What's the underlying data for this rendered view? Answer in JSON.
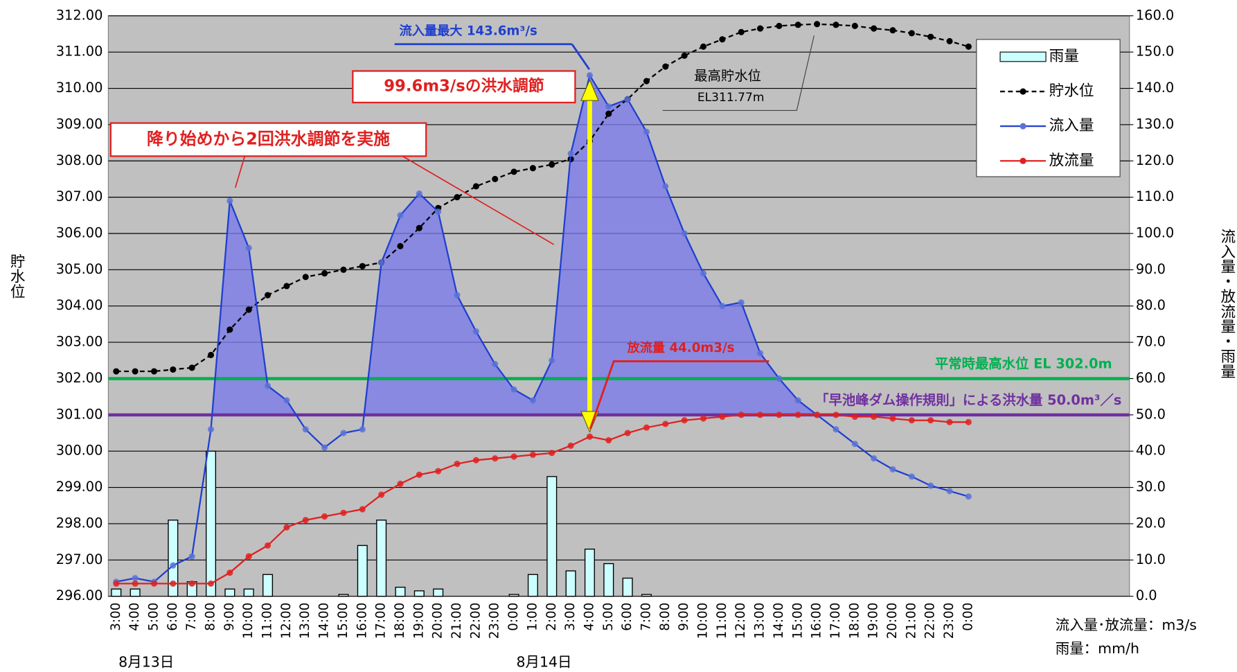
{
  "chart_data": {
    "type": "line",
    "categories": [
      "3:00",
      "4:00",
      "5:00",
      "6:00",
      "7:00",
      "8:00",
      "9:00",
      "10:00",
      "11:00",
      "12:00",
      "13:00",
      "14:00",
      "15:00",
      "16:00",
      "17:00",
      "18:00",
      "19:00",
      "20:00",
      "21:00",
      "22:00",
      "23:00",
      "0:00",
      "1:00",
      "2:00",
      "3:00",
      "4:00",
      "5:00",
      "6:00",
      "7:00",
      "8:00",
      "9:00",
      "10:00",
      "11:00",
      "12:00",
      "13:00",
      "14:00",
      "15:00",
      "16:00",
      "17:00",
      "18:00",
      "19:00",
      "20:00",
      "21:00",
      "22:00",
      "23:00",
      "0:00"
    ],
    "dates": [
      {
        "index": 0,
        "label": "8月13日"
      },
      {
        "index": 21,
        "label": "8月14日"
      }
    ],
    "series": [
      {
        "name": "雨量",
        "type": "bar",
        "axis": "y2",
        "color": "#ccffff",
        "values": [
          2,
          2,
          0,
          21,
          4,
          40,
          2,
          2,
          6,
          0,
          0,
          0,
          0.5,
          14,
          21,
          2.5,
          1.5,
          2,
          0,
          0,
          0,
          0.5,
          6,
          33,
          7,
          13,
          9,
          5,
          0.5,
          0,
          0,
          0,
          0,
          0,
          0,
          0,
          0,
          0,
          0,
          0,
          0,
          0,
          0,
          0,
          0,
          0
        ]
      },
      {
        "name": "貯水位",
        "type": "line",
        "axis": "y",
        "color": "#000000",
        "dashed": true,
        "values": [
          302.2,
          302.2,
          302.2,
          302.25,
          302.3,
          302.65,
          303.35,
          303.9,
          304.3,
          304.55,
          304.8,
          304.9,
          305.0,
          305.1,
          305.2,
          305.65,
          306.15,
          306.7,
          307.0,
          307.3,
          307.5,
          307.7,
          307.8,
          307.9,
          308.05,
          308.55,
          309.3,
          309.7,
          310.2,
          310.6,
          310.9,
          311.15,
          311.35,
          311.55,
          311.65,
          311.72,
          311.75,
          311.77,
          311.75,
          311.72,
          311.65,
          311.6,
          311.52,
          311.42,
          311.3,
          311.15
        ]
      },
      {
        "name": "流入量",
        "type": "line",
        "axis": "y2",
        "color": "#1f3fd0",
        "values": [
          4,
          5,
          4,
          8.5,
          11,
          46,
          109,
          96,
          58,
          54,
          46,
          41,
          45,
          46,
          92,
          105,
          111,
          106,
          83,
          73,
          64,
          57,
          54,
          65,
          122,
          143.6,
          135,
          137,
          128,
          113,
          100,
          89,
          80,
          81,
          67,
          60,
          54,
          50,
          46,
          42,
          38,
          35,
          33,
          30.5,
          29,
          27.5
        ]
      },
      {
        "name": "放流量",
        "type": "line",
        "axis": "y2",
        "color": "#e02020",
        "values": [
          3.5,
          3.5,
          3.5,
          3.5,
          3.5,
          3.5,
          6.5,
          11,
          14,
          19,
          21,
          22,
          23,
          24,
          28,
          31,
          33.5,
          34.5,
          36.5,
          37.5,
          38,
          38.5,
          39,
          39.5,
          41.5,
          44.0,
          43,
          45,
          46.5,
          47.5,
          48.5,
          49,
          49.5,
          50,
          50,
          50,
          50,
          50,
          50,
          49.5,
          49.5,
          49,
          48.5,
          48.5,
          48,
          48
        ]
      }
    ],
    "ylim": [
      296,
      312
    ],
    "yticks": [
      {
        "value": 296,
        "label": "296.00"
      },
      {
        "value": 297,
        "label": "297.00"
      },
      {
        "value": 298,
        "label": "298.00"
      },
      {
        "value": 299,
        "label": "299.00"
      },
      {
        "value": 300,
        "label": "300.00"
      },
      {
        "value": 301,
        "label": "301.00"
      },
      {
        "value": 302,
        "label": "302.00"
      },
      {
        "value": 303,
        "label": "303.00"
      },
      {
        "value": 304,
        "label": "304.00"
      },
      {
        "value": 305,
        "label": "305.00"
      },
      {
        "value": 306,
        "label": "306.00"
      },
      {
        "value": 307,
        "label": "307.00"
      },
      {
        "value": 308,
        "label": "308.00"
      },
      {
        "value": 309,
        "label": "309.00"
      },
      {
        "value": 310,
        "label": "310.00"
      },
      {
        "value": 311,
        "label": "311.00"
      },
      {
        "value": 312,
        "label": "312.00"
      }
    ],
    "y2lim": [
      0,
      160
    ],
    "y2ticks": [
      {
        "value": 0,
        "label": "0.0"
      },
      {
        "value": 10,
        "label": "10.0"
      },
      {
        "value": 20,
        "label": "20.0"
      },
      {
        "value": 30,
        "label": "30.0"
      },
      {
        "value": 40,
        "label": "40.0"
      },
      {
        "value": 50,
        "label": "50.0"
      },
      {
        "value": 60,
        "label": "60.0"
      },
      {
        "value": 70,
        "label": "70.0"
      },
      {
        "value": 80,
        "label": "80.0"
      },
      {
        "value": 90,
        "label": "90.0"
      },
      {
        "value": 100,
        "label": "100.0"
      },
      {
        "value": 110,
        "label": "110.0"
      },
      {
        "value": 120,
        "label": "120.0"
      },
      {
        "value": 130,
        "label": "130.0"
      },
      {
        "value": 140,
        "label": "140.0"
      },
      {
        "value": 150,
        "label": "150.0"
      },
      {
        "value": 160,
        "label": "160.0"
      }
    ],
    "grid": true,
    "ylabel": "貯水位",
    "y2label": "流入量・放流量・雨量",
    "reference_lines": [
      {
        "label": "平常時最高水位 EL 302.0m",
        "value": 302,
        "axis": "y",
        "color": "#00b050"
      },
      {
        "label": "「早池峰ダム操作規則」による洪水量 50.0m³／s",
        "value": 50,
        "axis": "y2",
        "color": "#7030a0"
      }
    ],
    "annotations": {
      "max_inflow": "流入量最大 143.6m³/s",
      "control": "99.6m3/sの洪水調節",
      "twice": "降り始めから2回洪水調節を実施",
      "release": "放流量 44.0m3/s",
      "max_level_title": "最高貯水位",
      "max_level": "EL311.77m"
    },
    "units": [
      "流入量･放流量：m3/s",
      "雨量：mm/h"
    ],
    "legend": "upper right"
  }
}
